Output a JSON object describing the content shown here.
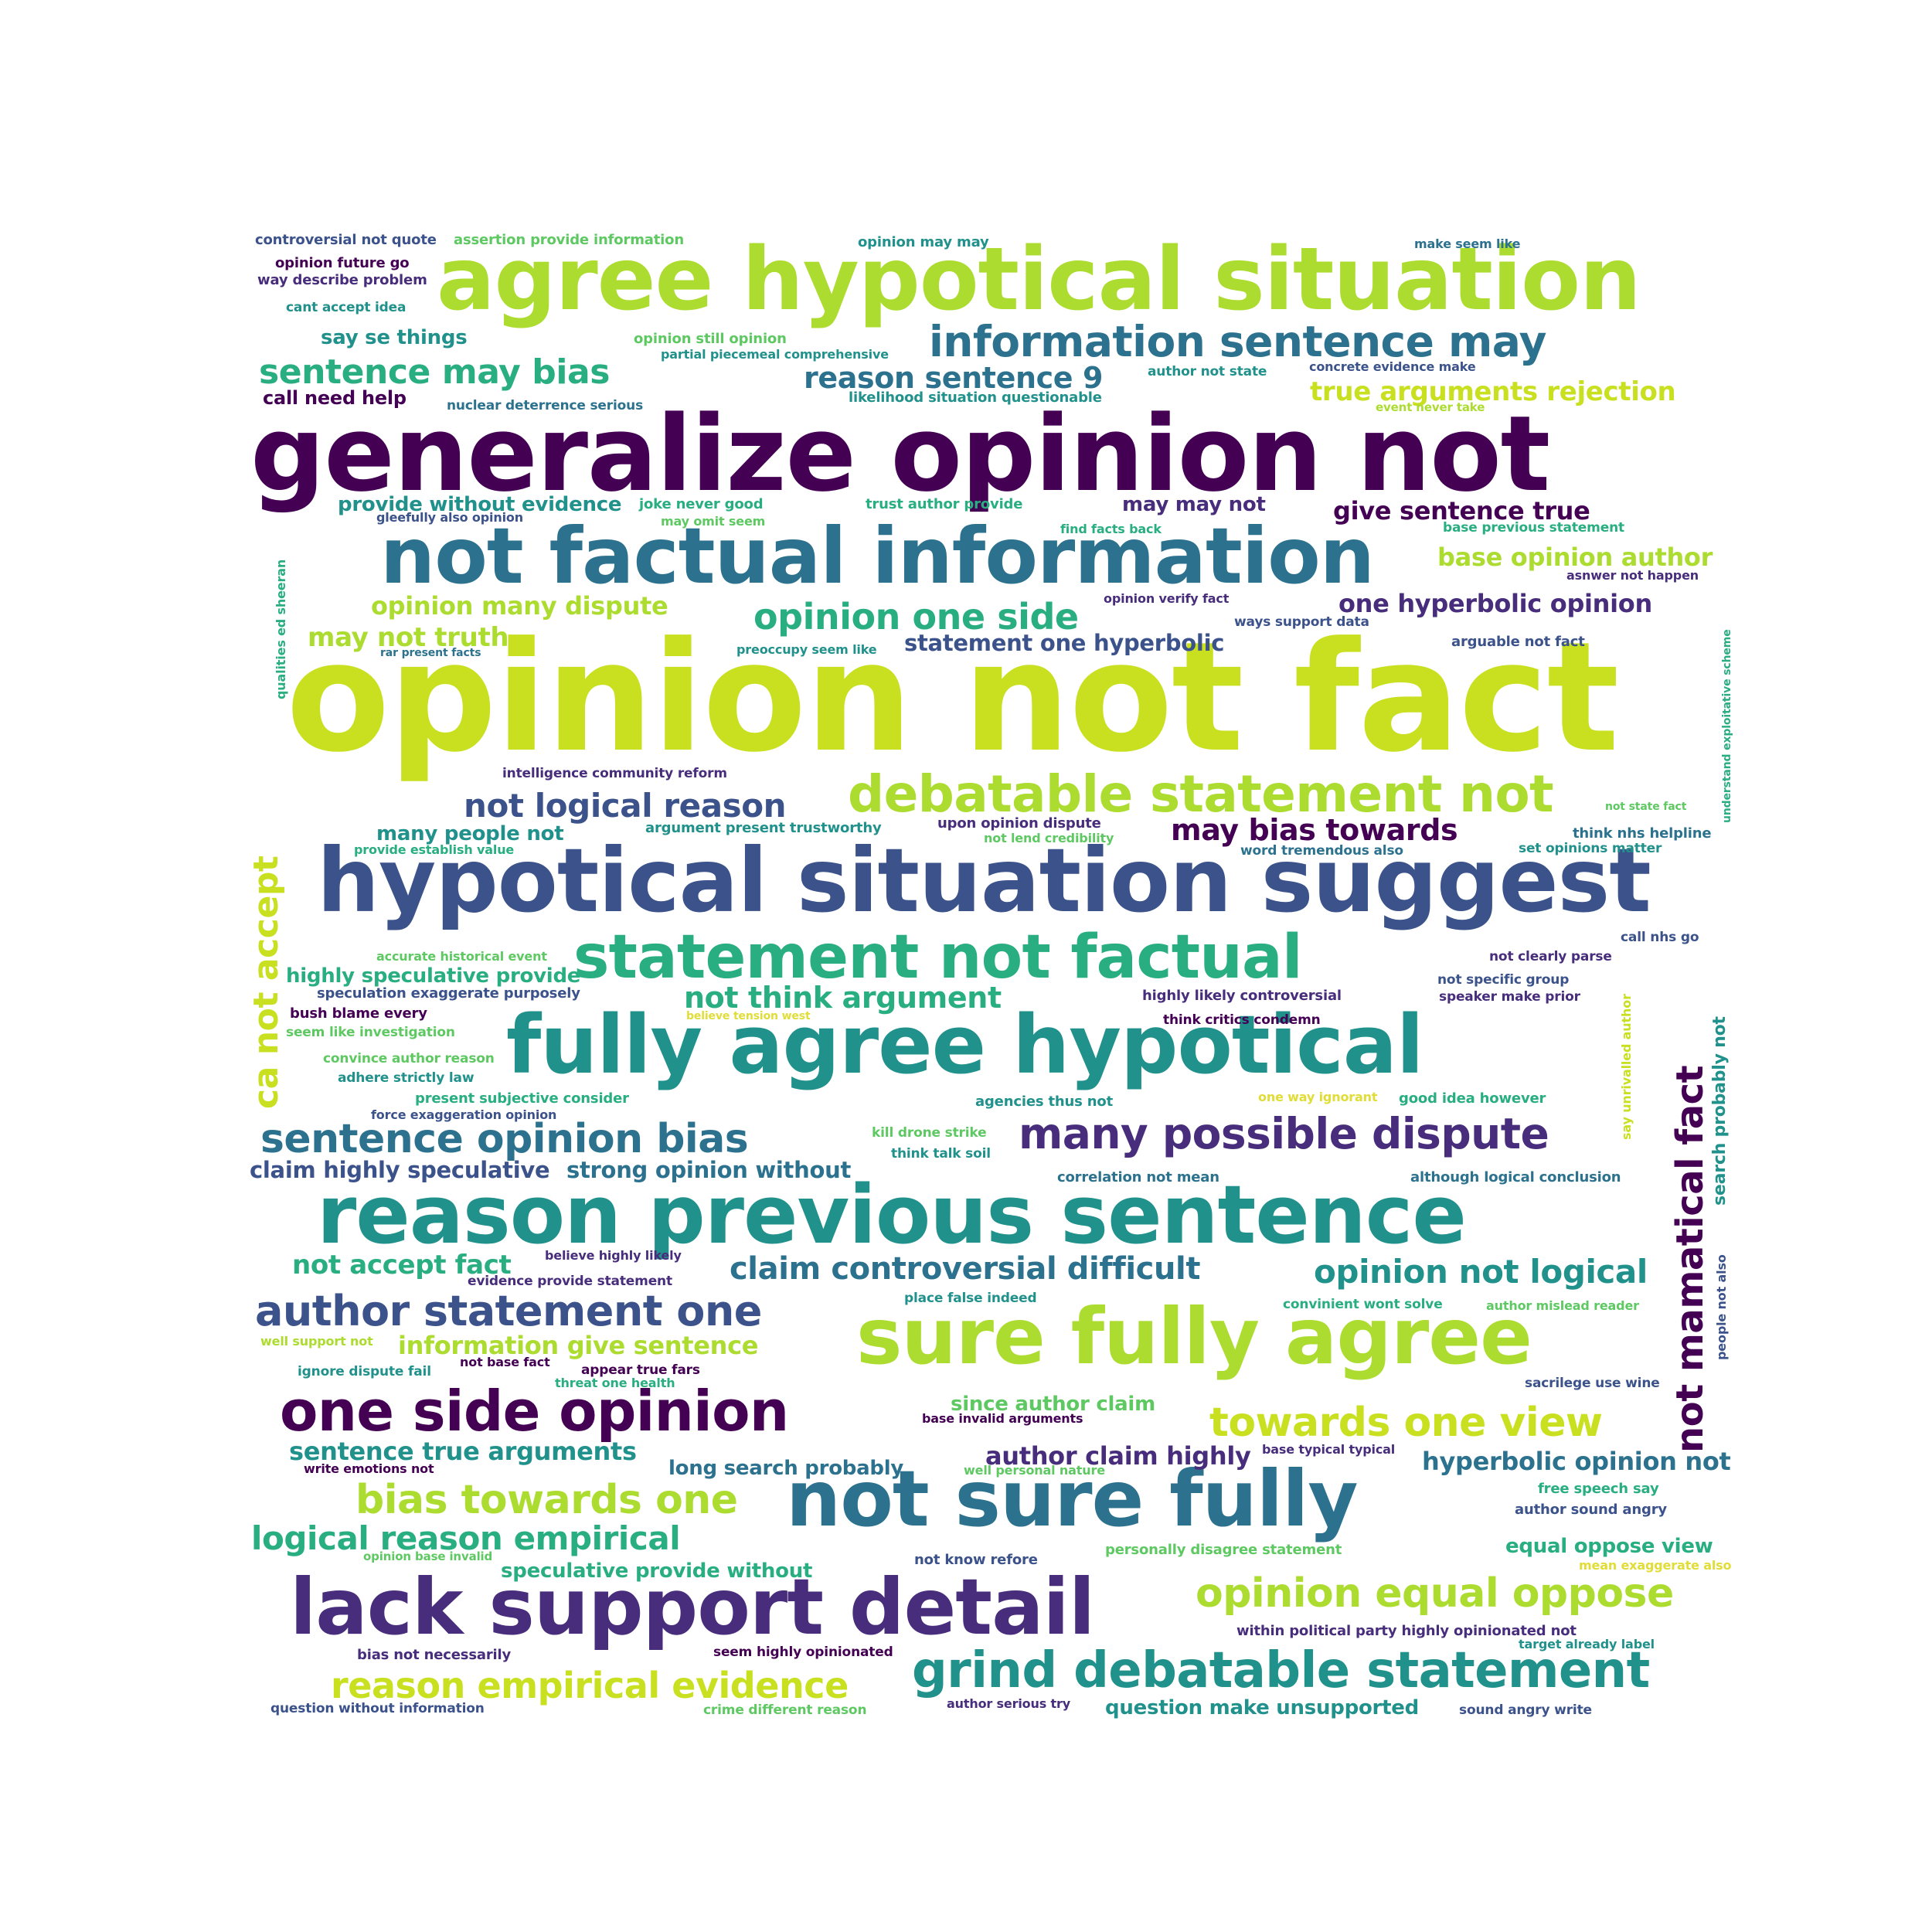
{
  "palette": {
    "dark_purple": "#440154",
    "indigo": "#472d7b",
    "slate_blue": "#3b528b",
    "steel_blue": "#2c728e",
    "teal": "#21918c",
    "sea_green": "#28ae80",
    "green": "#5ec962",
    "lime": "#addc30",
    "yellow_lime": "#c8e020",
    "yellow": "#e1dd37"
  },
  "words": [
    {
      "id": "w1",
      "text": "opinion not fact",
      "color": "yellow_lime"
    },
    {
      "id": "w2",
      "text": "generalize opinion not",
      "color": "dark_purple"
    },
    {
      "id": "w3",
      "text": "hypotical situation suggest",
      "color": "slate_blue"
    },
    {
      "id": "w4",
      "text": "agree hypotical situation",
      "color": "lime"
    },
    {
      "id": "w5",
      "text": "not factual information",
      "color": "steel_blue"
    },
    {
      "id": "w6",
      "text": "fully agree hypotical",
      "color": "teal"
    },
    {
      "id": "w7",
      "text": "reason previous sentence",
      "color": "teal"
    },
    {
      "id": "w8",
      "text": "sure fully agree",
      "color": "lime"
    },
    {
      "id": "w9",
      "text": "not sure fully",
      "color": "steel_blue"
    },
    {
      "id": "w10",
      "text": "lack support detail",
      "color": "indigo"
    },
    {
      "id": "w11",
      "text": "statement not factual",
      "color": "sea_green"
    },
    {
      "id": "w12",
      "text": "debatable statement not",
      "color": "lime"
    },
    {
      "id": "w13",
      "text": "one side opinion",
      "color": "dark_purple"
    },
    {
      "id": "w14",
      "text": "grind debatable statement",
      "color": "teal"
    },
    {
      "id": "w15",
      "text": "information sentence may",
      "color": "steel_blue"
    },
    {
      "id": "w16",
      "text": "many possible dispute",
      "color": "indigo"
    },
    {
      "id": "w17",
      "text": "author statement one",
      "color": "slate_blue"
    },
    {
      "id": "w18",
      "text": "sentence opinion bias",
      "color": "steel_blue"
    },
    {
      "id": "w19",
      "text": "opinion equal oppose",
      "color": "lime"
    },
    {
      "id": "w20",
      "text": "towards one view",
      "color": "yellow_lime"
    },
    {
      "id": "w21",
      "text": "bias towards one",
      "color": "lime"
    },
    {
      "id": "w22",
      "text": "reason empirical evidence",
      "color": "yellow_lime"
    },
    {
      "id": "w23",
      "text": "opinion one side",
      "color": "sea_green"
    },
    {
      "id": "w24",
      "text": "not logical reason",
      "color": "slate_blue"
    },
    {
      "id": "w25",
      "text": "ca not accept",
      "color": "yellow_lime"
    },
    {
      "id": "w26",
      "text": "not mamatical fact",
      "color": "dark_purple"
    },
    {
      "id": "w27",
      "text": "sentence may bias",
      "color": "sea_green"
    },
    {
      "id": "w28",
      "text": "claim controversial difficult",
      "color": "steel_blue"
    },
    {
      "id": "w29",
      "text": "opinion not logical",
      "color": "teal"
    },
    {
      "id": "w30",
      "text": "logical reason empirical",
      "color": "sea_green"
    },
    {
      "id": "w31",
      "text": "reason sentence 9",
      "color": "steel_blue"
    },
    {
      "id": "w32",
      "text": "not think argument",
      "color": "sea_green"
    },
    {
      "id": "w33",
      "text": "may bias towards",
      "color": "dark_purple"
    },
    {
      "id": "w34",
      "text": "true arguments rejection",
      "color": "yellow_lime"
    },
    {
      "id": "w35",
      "text": "not accept fact",
      "color": "sea_green"
    },
    {
      "id": "w36",
      "text": "information give sentence",
      "color": "lime"
    },
    {
      "id": "w37",
      "text": "sentence true arguments",
      "color": "teal"
    },
    {
      "id": "w38",
      "text": "hyperbolic opinion not",
      "color": "steel_blue"
    },
    {
      "id": "w39",
      "text": "give sentence true",
      "color": "dark_purple"
    },
    {
      "id": "w40",
      "text": "base opinion author",
      "color": "lime"
    },
    {
      "id": "w41",
      "text": "one hyperbolic opinion",
      "color": "indigo"
    },
    {
      "id": "w42",
      "text": "statement one hyperbolic",
      "color": "slate_blue"
    },
    {
      "id": "w43",
      "text": "may not truth",
      "color": "lime"
    },
    {
      "id": "w44",
      "text": "opinion many dispute",
      "color": "lime"
    },
    {
      "id": "w45",
      "text": "claim highly speculative",
      "color": "slate_blue"
    },
    {
      "id": "w46",
      "text": "strong opinion without",
      "color": "steel_blue"
    },
    {
      "id": "w47",
      "text": "author claim highly",
      "color": "indigo"
    },
    {
      "id": "w48",
      "text": "speculative provide without",
      "color": "sea_green"
    },
    {
      "id": "w49",
      "text": "long search probably",
      "color": "steel_blue"
    },
    {
      "id": "w50",
      "text": "question make unsupported",
      "color": "teal"
    },
    {
      "id": "w51",
      "text": "many people not",
      "color": "teal"
    },
    {
      "id": "w52",
      "text": "since author claim",
      "color": "green"
    },
    {
      "id": "w53",
      "text": "equal oppose view",
      "color": "sea_green"
    },
    {
      "id": "w54",
      "text": "provide without evidence",
      "color": "teal"
    },
    {
      "id": "w55",
      "text": "highly speculative provide",
      "color": "sea_green"
    },
    {
      "id": "w56",
      "text": "say se things",
      "color": "teal"
    },
    {
      "id": "w57",
      "text": "call need help",
      "color": "dark_purple"
    },
    {
      "id": "w58",
      "text": "may may not",
      "color": "indigo"
    },
    {
      "id": "w59",
      "text": "search probably not",
      "color": "teal"
    },
    {
      "id": "w60",
      "text": "controversial not quote",
      "color": "slate_blue"
    },
    {
      "id": "w61",
      "text": "assertion provide information",
      "color": "green"
    },
    {
      "id": "w62",
      "text": "opinion may may",
      "color": "teal"
    },
    {
      "id": "w63",
      "text": "make seem like",
      "color": "steel_blue"
    },
    {
      "id": "w64",
      "text": "opinion future go",
      "color": "dark_purple"
    },
    {
      "id": "w65",
      "text": "way describe problem",
      "color": "indigo"
    },
    {
      "id": "w66",
      "text": "cant accept idea",
      "color": "teal"
    },
    {
      "id": "w67",
      "text": "opinion still opinion",
      "color": "green"
    },
    {
      "id": "w68",
      "text": "partial piecemeal comprehensive",
      "color": "teal"
    },
    {
      "id": "w69",
      "text": "author not state",
      "color": "teal"
    },
    {
      "id": "w70",
      "text": "concrete evidence make",
      "color": "slate_blue"
    },
    {
      "id": "w71",
      "text": "likelihood situation questionable",
      "color": "teal"
    },
    {
      "id": "w72",
      "text": "nuclear deterrence serious",
      "color": "steel_blue"
    },
    {
      "id": "w73",
      "text": "event never take",
      "color": "lime"
    },
    {
      "id": "w74",
      "text": "joke never good",
      "color": "sea_green"
    },
    {
      "id": "w75",
      "text": "trust author provide",
      "color": "sea_green"
    },
    {
      "id": "w76",
      "text": "gleefully also opinion",
      "color": "slate_blue"
    },
    {
      "id": "w77",
      "text": "may omit seem",
      "color": "green"
    },
    {
      "id": "w78",
      "text": "find facts back",
      "color": "sea_green"
    },
    {
      "id": "w79",
      "text": "base previous statement",
      "color": "sea_green"
    },
    {
      "id": "w80",
      "text": "asnwer not happen",
      "color": "indigo"
    },
    {
      "id": "w81",
      "text": "opinion verify fact",
      "color": "indigo"
    },
    {
      "id": "w82",
      "text": "ways support data",
      "color": "slate_blue"
    },
    {
      "id": "w83",
      "text": "rar present facts",
      "color": "steel_blue"
    },
    {
      "id": "w84",
      "text": "preoccupy seem like",
      "color": "teal"
    },
    {
      "id": "w85",
      "text": "arguable not fact",
      "color": "slate_blue"
    },
    {
      "id": "w86",
      "text": "qualities ed sheeran",
      "color": "sea_green"
    },
    {
      "id": "w87",
      "text": "understand exploitative scheme",
      "color": "sea_green"
    },
    {
      "id": "w88",
      "text": "intelligence community reform",
      "color": "indigo"
    },
    {
      "id": "w89",
      "text": "not state fact",
      "color": "green"
    },
    {
      "id": "w90",
      "text": "argument present trustworthy",
      "color": "teal"
    },
    {
      "id": "w91",
      "text": "upon opinion dispute",
      "color": "indigo"
    },
    {
      "id": "w92",
      "text": "not lend credibility",
      "color": "green"
    },
    {
      "id": "w93",
      "text": "think nhs helpline",
      "color": "steel_blue"
    },
    {
      "id": "w94",
      "text": "provide establish value",
      "color": "sea_green"
    },
    {
      "id": "w95",
      "text": "word tremendous also",
      "color": "steel_blue"
    },
    {
      "id": "w96",
      "text": "set opinions matter",
      "color": "teal"
    },
    {
      "id": "w97",
      "text": "call nhs go",
      "color": "slate_blue"
    },
    {
      "id": "w98",
      "text": "accurate historical event",
      "color": "green"
    },
    {
      "id": "w99",
      "text": "not clearly parse",
      "color": "indigo"
    },
    {
      "id": "w100",
      "text": "speculation exaggerate purposely",
      "color": "slate_blue"
    },
    {
      "id": "w101",
      "text": "highly likely controversial",
      "color": "indigo"
    },
    {
      "id": "w102",
      "text": "not specific group",
      "color": "slate_blue"
    },
    {
      "id": "w103",
      "text": "speaker make prior",
      "color": "indigo"
    },
    {
      "id": "w104",
      "text": "bush blame every",
      "color": "dark_purple"
    },
    {
      "id": "w105",
      "text": "believe tension west",
      "color": "yellow"
    },
    {
      "id": "w106",
      "text": "think critics condemn",
      "color": "dark_purple"
    },
    {
      "id": "w107",
      "text": "seem like investigation",
      "color": "green"
    },
    {
      "id": "w108",
      "text": "say unrivalled author",
      "color": "yellow_lime"
    },
    {
      "id": "w109",
      "text": "convince author reason",
      "color": "green"
    },
    {
      "id": "w110",
      "text": "adhere strictly law",
      "color": "teal"
    },
    {
      "id": "w111",
      "text": "one way ignorant",
      "color": "yellow"
    },
    {
      "id": "w112",
      "text": "good idea however",
      "color": "sea_green"
    },
    {
      "id": "w113",
      "text": "present subjective consider",
      "color": "sea_green"
    },
    {
      "id": "w114",
      "text": "agencies thus not",
      "color": "teal"
    },
    {
      "id": "w115",
      "text": "force exaggeration opinion",
      "color": "slate_blue"
    },
    {
      "id": "w116",
      "text": "kill drone strike",
      "color": "green"
    },
    {
      "id": "w117",
      "text": "think talk soil",
      "color": "teal"
    },
    {
      "id": "w118",
      "text": "correlation not mean",
      "color": "steel_blue"
    },
    {
      "id": "w119",
      "text": "although logical conclusion",
      "color": "steel_blue"
    },
    {
      "id": "w120",
      "text": "believe highly likely",
      "color": "indigo"
    },
    {
      "id": "w121",
      "text": "evidence provide statement",
      "color": "indigo"
    },
    {
      "id": "w122",
      "text": "place false indeed",
      "color": "teal"
    },
    {
      "id": "w123",
      "text": "convinient wont solve",
      "color": "sea_green"
    },
    {
      "id": "w124",
      "text": "author mislead reader",
      "color": "green"
    },
    {
      "id": "w125",
      "text": "people not also",
      "color": "slate_blue"
    },
    {
      "id": "w126",
      "text": "well support not",
      "color": "lime"
    },
    {
      "id": "w127",
      "text": "not base fact",
      "color": "dark_purple"
    },
    {
      "id": "w128",
      "text": "ignore dispute fail",
      "color": "teal"
    },
    {
      "id": "w129",
      "text": "appear true fars",
      "color": "dark_purple"
    },
    {
      "id": "w130",
      "text": "threat one health",
      "color": "sea_green"
    },
    {
      "id": "w131",
      "text": "sacrilege use wine",
      "color": "slate_blue"
    },
    {
      "id": "w132",
      "text": "base invalid arguments",
      "color": "dark_purple"
    },
    {
      "id": "w133",
      "text": "base typical typical",
      "color": "indigo"
    },
    {
      "id": "w134",
      "text": "write emotions not",
      "color": "dark_purple"
    },
    {
      "id": "w135",
      "text": "well personal nature",
      "color": "green"
    },
    {
      "id": "w136",
      "text": "free speech say",
      "color": "sea_green"
    },
    {
      "id": "w137",
      "text": "author sound angry",
      "color": "slate_blue"
    },
    {
      "id": "w138",
      "text": "opinion base invalid",
      "color": "green"
    },
    {
      "id": "w139",
      "text": "not know refore",
      "color": "slate_blue"
    },
    {
      "id": "w140",
      "text": "personally disagree statement",
      "color": "green"
    },
    {
      "id": "w141",
      "text": "mean exaggerate also",
      "color": "yellow"
    },
    {
      "id": "w142",
      "text": "within political party highly opinionated not",
      "color": "indigo"
    },
    {
      "id": "w143",
      "text": "target already label",
      "color": "teal"
    },
    {
      "id": "w144",
      "text": "bias not necessarily",
      "color": "indigo"
    },
    {
      "id": "w145",
      "text": "seem highly opinionated",
      "color": "dark_purple"
    },
    {
      "id": "w146",
      "text": "question without information",
      "color": "slate_blue"
    },
    {
      "id": "w147",
      "text": "crime different reason",
      "color": "green"
    },
    {
      "id": "w148",
      "text": "author serious try",
      "color": "indigo"
    },
    {
      "id": "w149",
      "text": "sound angry write",
      "color": "slate_blue"
    }
  ]
}
